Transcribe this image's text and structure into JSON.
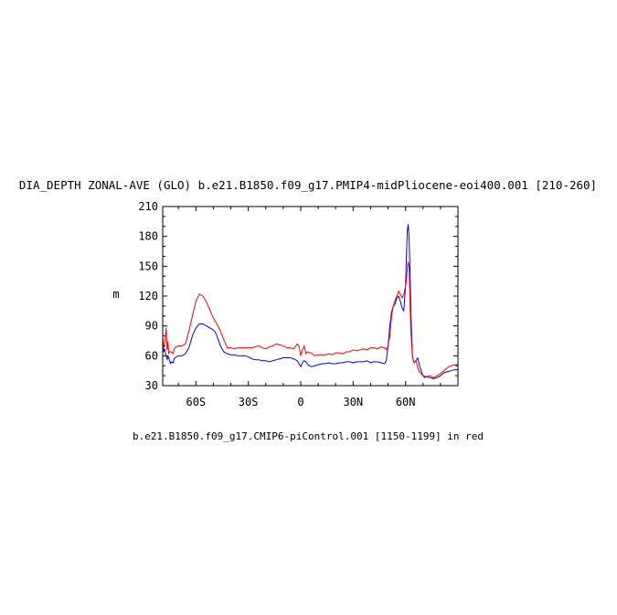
{
  "chart_data": {
    "type": "line",
    "title": "DIA_DEPTH ZONAL-AVE (GLO) b.e21.B1850.f09_g17.PMIP4-midPliocene-eoi400.001 [210-260]",
    "ylabel": "m",
    "xlabel": "",
    "caption": "b.e21.B1850.f09_g17.CMIP6-piControl.001 [1150-1199] in red",
    "xlim": [
      -79,
      90
    ],
    "ylim": [
      30,
      210
    ],
    "x_ticks": [
      {
        "value": -60,
        "label": "60S"
      },
      {
        "value": -30,
        "label": "30S"
      },
      {
        "value": 0,
        "label": "0"
      },
      {
        "value": 30,
        "label": "30N"
      },
      {
        "value": 60,
        "label": "60N"
      }
    ],
    "y_ticks": [
      30,
      60,
      90,
      120,
      150,
      180,
      210
    ],
    "grid": false,
    "series": [
      {
        "color": "#0000ff",
        "x": [
          -79,
          -78.5,
          -78,
          -77,
          -76.5,
          -76,
          -75,
          -74.5,
          -74,
          -73,
          -72.5,
          -72,
          -70,
          -68,
          -66,
          -64,
          -62,
          -60,
          -58,
          -56,
          -54,
          -52,
          -50,
          -49,
          -48,
          -47,
          -46,
          -44,
          -42,
          -40,
          -38,
          -36,
          -34,
          -32,
          -30,
          -28,
          -26,
          -24,
          -22,
          -20,
          -18,
          -16,
          -14,
          -12,
          -10,
          -8,
          -6,
          -4,
          -2,
          -1,
          0,
          1,
          2,
          3,
          4,
          5,
          6,
          8,
          10,
          12,
          14,
          16,
          18,
          20,
          22,
          24,
          26,
          28,
          30,
          32,
          34,
          36,
          38,
          40,
          42,
          44,
          46,
          48,
          49,
          50,
          51,
          52,
          53,
          54,
          55,
          56,
          57,
          58,
          59,
          60,
          60.5,
          61,
          61.5,
          62,
          62.5,
          63,
          63.5,
          64,
          64.5,
          65,
          66,
          67,
          68,
          69,
          70,
          71,
          72,
          74,
          76,
          78,
          80,
          82,
          84,
          86,
          88,
          90
        ],
        "y": [
          75,
          64,
          67,
          60,
          56,
          60,
          55,
          52,
          54,
          53,
          57,
          58,
          60,
          60,
          62,
          68,
          80,
          88,
          92,
          92,
          90,
          88,
          86,
          84,
          80,
          75,
          70,
          64,
          62,
          61,
          61,
          60,
          60,
          60,
          59,
          57,
          56,
          56,
          55,
          55,
          54,
          55,
          56,
          57,
          58,
          58,
          58,
          57,
          55,
          52,
          49,
          53,
          55,
          54,
          51,
          50,
          49,
          50,
          51,
          52,
          52,
          53,
          52,
          52,
          53,
          53,
          54,
          54,
          53,
          54,
          54,
          54,
          55,
          53,
          54,
          54,
          53,
          52,
          55,
          70,
          90,
          104,
          110,
          112,
          118,
          120,
          115,
          108,
          105,
          130,
          160,
          185,
          192,
          180,
          150,
          110,
          80,
          60,
          55,
          53,
          55,
          58,
          50,
          45,
          40,
          38,
          39,
          38,
          37,
          38,
          40,
          43,
          44,
          45,
          46,
          46
        ]
      },
      {
        "color": "#ff0000",
        "x": [
          -79,
          -78.5,
          -78,
          -77,
          -76.5,
          -76,
          -75.5,
          -75,
          -74,
          -73,
          -72.5,
          -72,
          -70,
          -68,
          -66,
          -64,
          -62,
          -60,
          -58,
          -56,
          -54,
          -52,
          -50,
          -48,
          -46,
          -44,
          -42,
          -40,
          -38,
          -36,
          -34,
          -32,
          -30,
          -28,
          -26,
          -24,
          -22,
          -20,
          -18,
          -16,
          -14,
          -12,
          -10,
          -8,
          -6,
          -4,
          -2,
          -1,
          0,
          1,
          2,
          3,
          4,
          5,
          6,
          8,
          10,
          12,
          14,
          16,
          18,
          20,
          22,
          24,
          26,
          28,
          30,
          32,
          34,
          36,
          38,
          40,
          42,
          44,
          46,
          48,
          49,
          50,
          51,
          52,
          53,
          54,
          55,
          56,
          57,
          58,
          59,
          60,
          60.5,
          61,
          61.5,
          62,
          62.5,
          63,
          64,
          65,
          66,
          67,
          68,
          69,
          70,
          72,
          74,
          76,
          78,
          80,
          82,
          84,
          86,
          88,
          90
        ],
        "y": [
          78,
          68,
          72,
          88,
          66,
          74,
          62,
          64,
          64,
          62,
          67,
          68,
          70,
          70,
          72,
          85,
          100,
          115,
          122,
          120,
          114,
          106,
          98,
          92,
          85,
          76,
          68,
          68,
          67,
          68,
          68,
          68,
          68,
          68,
          69,
          70,
          68,
          67,
          69,
          70,
          72,
          71,
          70,
          68,
          68,
          67,
          72,
          70,
          60,
          66,
          70,
          62,
          64,
          63,
          63,
          60,
          61,
          61,
          61,
          62,
          61,
          63,
          63,
          62,
          64,
          64,
          66,
          65,
          66,
          67,
          66,
          68,
          68,
          67,
          69,
          68,
          66,
          70,
          80,
          100,
          110,
          116,
          120,
          125,
          122,
          118,
          122,
          130,
          135,
          148,
          154,
          150,
          120,
          85,
          58,
          53,
          55,
          48,
          44,
          42,
          40,
          39,
          40,
          38,
          40,
          42,
          45,
          48,
          50,
          51,
          51
        ]
      }
    ]
  }
}
